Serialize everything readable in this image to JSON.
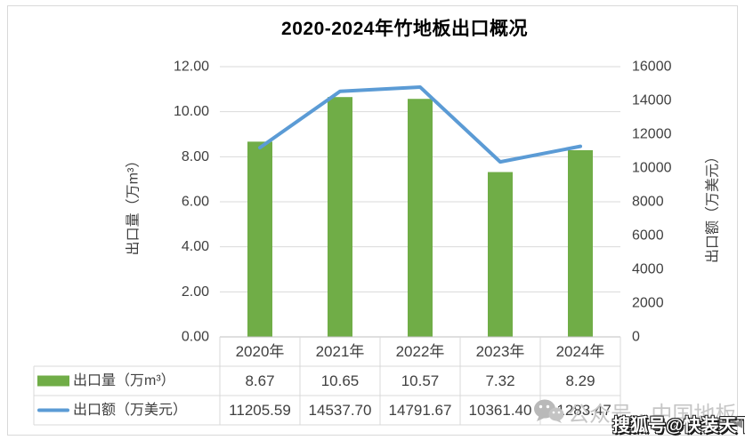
{
  "chart_data": {
    "type": "combo",
    "title": "2020-2024年竹地板出口概况",
    "categories": [
      "2020年",
      "2021年",
      "2022年",
      "2023年",
      "2024年"
    ],
    "series": [
      {
        "name": "出口量（万m³）",
        "type": "bar",
        "axis": "left",
        "color": "#70AD47",
        "values": [
          8.67,
          10.65,
          10.57,
          7.32,
          8.29
        ]
      },
      {
        "name": "出口额（万美元）",
        "type": "line",
        "axis": "right",
        "color": "#5B9BD5",
        "values": [
          11205.59,
          14537.7,
          14791.67,
          10361.4,
          11283.47
        ]
      }
    ],
    "left_axis": {
      "title": "出口量（万m³）",
      "min": 0,
      "max": 12,
      "ticks": [
        "0.00",
        "2.00",
        "4.00",
        "6.00",
        "8.00",
        "10.00",
        "12.00"
      ]
    },
    "right_axis": {
      "title": "出口额（万美元）",
      "min": 0,
      "max": 16000,
      "ticks": [
        "0",
        "2000",
        "4000",
        "6000",
        "8000",
        "10000",
        "12000",
        "14000",
        "16000"
      ]
    },
    "grid": true,
    "legend_position": "data-table-left",
    "colors": {
      "gridline": "#d9d9d9",
      "axis_line": "#bfbfbf",
      "tick_text": "#404040"
    }
  },
  "table": {
    "header": [
      "2020年",
      "2021年",
      "2022年",
      "2023年",
      "2024年"
    ],
    "rows": [
      {
        "label": "出口量（万m³）",
        "swatch": "bar-swatch",
        "color": "#70AD47",
        "values": [
          "8.67",
          "10.65",
          "10.57",
          "7.32",
          "8.29"
        ]
      },
      {
        "label": "出口额（万美元）",
        "swatch": "line-swatch",
        "color": "#5B9BD5",
        "values": [
          "11205.59",
          "14537.70",
          "14791.67",
          "10361.40",
          "11283.47"
        ]
      }
    ]
  },
  "watermark": {
    "wechat_icon": "wechat-icon",
    "account_text": "公众号 · 中国地板",
    "sohu_text": "搜狐号@快装天下",
    "arrow_icon": "◀"
  }
}
